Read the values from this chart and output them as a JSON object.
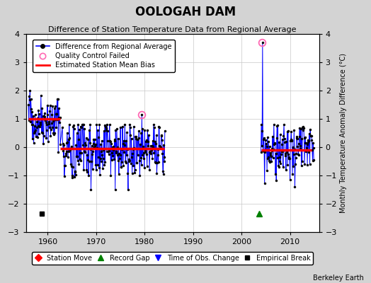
{
  "title": "OOLOGAH DAM",
  "subtitle": "Difference of Station Temperature Data from Regional Average",
  "ylabel_right": "Monthly Temperature Anomaly Difference (°C)",
  "credit": "Berkeley Earth",
  "xlim": [
    1955.5,
    2016
  ],
  "ylim": [
    -3,
    4
  ],
  "yticks": [
    -3,
    -2,
    -1,
    0,
    1,
    2,
    3,
    4
  ],
  "xticks": [
    1960,
    1970,
    1980,
    1990,
    2000,
    2010
  ],
  "background_color": "#d3d3d3",
  "plot_bg_color": "#ffffff",
  "seg1a_bias": 1.0,
  "seg1a_start": 1956.0,
  "seg1a_end": 1962.5,
  "seg1b_bias": -0.05,
  "seg1b_start": 1962.5,
  "seg1b_end": 1984.0,
  "seg2_bias": -0.1,
  "seg2_start": 2004.0,
  "seg2_end": 2014.5,
  "empirical_break_x": 1958.7,
  "empirical_break_y": -2.35,
  "record_gap_x": 2003.7,
  "record_gap_y": -2.35,
  "qc1_x": 1979.4,
  "qc1_y": 1.15,
  "qc2_x": 2004.25,
  "qc2_y": 3.7,
  "qc_fail_color": "#ff69b4",
  "line_color": "#0000ff",
  "marker_color": "#000000",
  "bias_line_color": "#ff0000",
  "grid_color": "#c8c8c8"
}
